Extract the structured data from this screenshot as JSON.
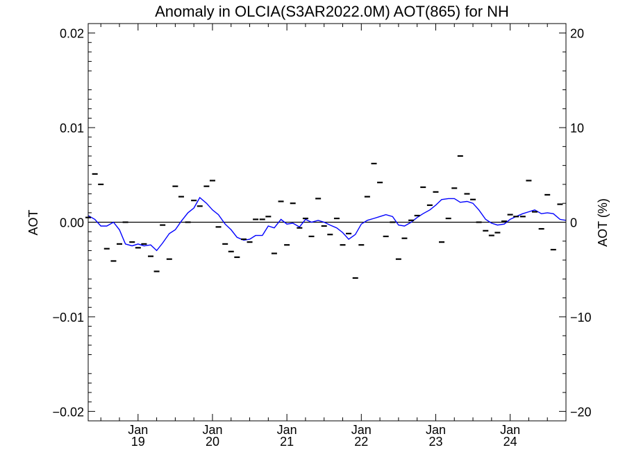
{
  "chart_data": {
    "type": "line",
    "title": "Anomaly in OLCIA(S3AR2022.0M) AOT(865) for NH",
    "ylabel": "AOT",
    "ylabel_right": "AOT (%)",
    "ylim": [
      -0.021,
      0.021
    ],
    "ylim_right": [
      -21,
      21
    ],
    "yticks": [
      {
        "value": 0.02,
        "label": "0.02"
      },
      {
        "value": 0.01,
        "label": "0.01"
      },
      {
        "value": 0.0,
        "label": "0.00"
      },
      {
        "value": -0.01,
        "label": "−0.01"
      },
      {
        "value": -0.02,
        "label": "−0.02"
      }
    ],
    "yticks_right": [
      {
        "value": 20,
        "label": "20"
      },
      {
        "value": 10,
        "label": "10"
      },
      {
        "value": 0,
        "label": "0"
      },
      {
        "value": -10,
        "label": "−10"
      },
      {
        "value": -20,
        "label": "−20"
      }
    ],
    "xlim": [
      2018.33,
      2024.75
    ],
    "xticks": [
      {
        "value": 2019.0,
        "month": "Jan",
        "year": "19"
      },
      {
        "value": 2020.0,
        "month": "Jan",
        "year": "20"
      },
      {
        "value": 2021.0,
        "month": "Jan",
        "year": "21"
      },
      {
        "value": 2022.0,
        "month": "Jan",
        "year": "22"
      },
      {
        "value": 2023.0,
        "month": "Jan",
        "year": "23"
      },
      {
        "value": 2024.0,
        "month": "Jan",
        "year": "24"
      }
    ],
    "colors": {
      "monthly": "#000000",
      "smoothed": "#0000ff",
      "zero_line": "#000000"
    },
    "series": [
      {
        "style": "dash-markers",
        "x": [
          2018.33,
          2018.42,
          2018.5,
          2018.58,
          2018.67,
          2018.75,
          2018.83,
          2018.92,
          2019.0,
          2019.08,
          2019.17,
          2019.25,
          2019.33,
          2019.42,
          2019.5,
          2019.58,
          2019.67,
          2019.75,
          2019.83,
          2019.92,
          2020.0,
          2020.08,
          2020.17,
          2020.25,
          2020.33,
          2020.42,
          2020.5,
          2020.58,
          2020.67,
          2020.75,
          2020.83,
          2020.92,
          2021.0,
          2021.08,
          2021.17,
          2021.25,
          2021.33,
          2021.42,
          2021.5,
          2021.58,
          2021.67,
          2021.75,
          2021.83,
          2021.92,
          2022.0,
          2022.08,
          2022.17,
          2022.25,
          2022.33,
          2022.42,
          2022.5,
          2022.58,
          2022.67,
          2022.75,
          2022.83,
          2022.92,
          2023.0,
          2023.08,
          2023.17,
          2023.25,
          2023.33,
          2023.42,
          2023.5,
          2023.58,
          2023.67,
          2023.75,
          2023.83,
          2023.92,
          2024.0,
          2024.08,
          2024.17,
          2024.25,
          2024.33,
          2024.42,
          2024.5,
          2024.58,
          2024.67
        ],
        "values": [
          0.0005,
          0.0051,
          0.004,
          -0.0028,
          -0.0041,
          -0.0023,
          0.0,
          -0.0021,
          -0.0027,
          -0.0023,
          -0.0036,
          -0.0052,
          -0.0003,
          -0.0039,
          0.0038,
          0.0027,
          0.0,
          0.0023,
          0.0017,
          0.0038,
          0.0044,
          -0.0005,
          -0.0023,
          -0.0031,
          -0.0037,
          -0.0018,
          -0.0021,
          0.0003,
          0.0003,
          0.0006,
          -0.0033,
          0.0022,
          -0.0024,
          0.002,
          -0.0006,
          0.0004,
          -0.0015,
          0.0025,
          -0.0004,
          -0.0013,
          0.0004,
          -0.0024,
          -0.0012,
          -0.0059,
          -0.0024,
          0.0027,
          0.0062,
          0.0042,
          -0.0015,
          0.0,
          -0.0039,
          -0.0017,
          0.0002,
          0.0007,
          0.0037,
          0.0018,
          0.0032,
          -0.0021,
          0.0004,
          0.0036,
          0.007,
          0.003,
          0.0024,
          0.0,
          -0.0009,
          -0.0014,
          -0.0011,
          0.0001,
          0.0008,
          0.0006,
          0.0006,
          0.0044,
          0.0011,
          -0.0007,
          0.0029,
          -0.0029,
          0.0019
        ]
      },
      {
        "style": "line",
        "x": [
          2018.33,
          2018.42,
          2018.5,
          2018.58,
          2018.67,
          2018.75,
          2018.83,
          2018.92,
          2019.0,
          2019.08,
          2019.17,
          2019.25,
          2019.33,
          2019.42,
          2019.5,
          2019.58,
          2019.67,
          2019.75,
          2019.83,
          2019.92,
          2020.0,
          2020.08,
          2020.17,
          2020.25,
          2020.33,
          2020.42,
          2020.5,
          2020.58,
          2020.67,
          2020.75,
          2020.83,
          2020.92,
          2021.0,
          2021.08,
          2021.17,
          2021.25,
          2021.33,
          2021.42,
          2021.5,
          2021.58,
          2021.67,
          2021.75,
          2021.83,
          2021.92,
          2022.0,
          2022.08,
          2022.17,
          2022.25,
          2022.33,
          2022.42,
          2022.5,
          2022.58,
          2022.67,
          2022.75,
          2022.83,
          2022.92,
          2023.0,
          2023.08,
          2023.17,
          2023.25,
          2023.33,
          2023.42,
          2023.5,
          2023.58,
          2023.67,
          2023.75,
          2023.83,
          2023.92,
          2024.0,
          2024.08,
          2024.17,
          2024.25,
          2024.33,
          2024.42,
          2024.5,
          2024.58,
          2024.67,
          2024.75
        ],
        "values": [
          0.0007,
          0.0003,
          -0.0004,
          -0.0004,
          0.0,
          -0.0008,
          -0.0023,
          -0.0025,
          -0.0023,
          -0.0025,
          -0.0024,
          -0.003,
          -0.0022,
          -0.0012,
          -0.0008,
          0.0001,
          0.001,
          0.0015,
          0.0026,
          0.002,
          0.0013,
          0.0008,
          -0.0002,
          -0.0008,
          -0.0016,
          -0.0019,
          -0.0018,
          -0.0014,
          -0.0014,
          -0.0004,
          -0.0006,
          0.0003,
          -0.0002,
          -0.0001,
          -0.0005,
          0.0003,
          0.0,
          0.0002,
          0.0,
          -0.0003,
          -0.0006,
          -0.0011,
          -0.0018,
          -0.0013,
          -0.0002,
          0.0002,
          0.0004,
          0.0006,
          0.0008,
          0.0006,
          -0.0003,
          -0.0004,
          0.0,
          0.0005,
          0.0009,
          0.0013,
          0.0018,
          0.0024,
          0.0025,
          0.0025,
          0.0021,
          0.0022,
          0.002,
          0.0013,
          0.0003,
          -0.0001,
          -0.0003,
          -0.0002,
          0.0003,
          0.0006,
          0.0009,
          0.0011,
          0.0013,
          0.0009,
          0.001,
          0.0009,
          0.0003,
          0.0002
        ]
      }
    ]
  }
}
